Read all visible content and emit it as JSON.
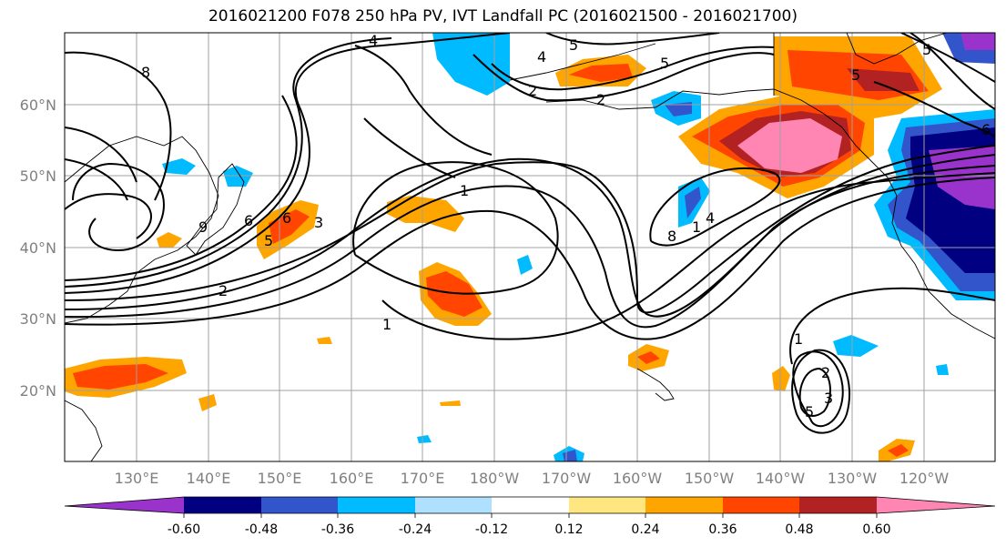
{
  "title": "2016021200 F078 250 hPa PV, IVT Landfall PC (2016021500 - 2016021700)",
  "map": {
    "lat_labels": [
      "60°N",
      "50°N",
      "40°N",
      "30°N",
      "20°N"
    ],
    "lon_labels": [
      "130°E",
      "140°E",
      "150°E",
      "160°E",
      "170°E",
      "180°W",
      "170°W",
      "160°W",
      "150°W",
      "140°W",
      "130°W",
      "120°W"
    ],
    "contour_labels": [
      "8",
      "4",
      "5",
      "2",
      "5",
      "4",
      "5",
      "2",
      "6",
      "5",
      "6",
      "1",
      "9",
      "5",
      "3",
      "6",
      "2",
      "8",
      "1",
      "1",
      "4",
      "1",
      "2",
      "3",
      "5"
    ]
  },
  "colorbar": {
    "colors": [
      "#9933cc",
      "#000080",
      "#3355cc",
      "#00bbff",
      "#b0e0ff",
      "#ffffff",
      "#ffe680",
      "#ffa500",
      "#ff4500",
      "#b22222",
      "#ff85b3"
    ],
    "tick_labels": [
      "-0.60",
      "-0.48",
      "-0.36",
      "-0.24",
      "-0.12",
      "0.12",
      "0.24",
      "0.36",
      "0.48",
      "0.60"
    ]
  }
}
